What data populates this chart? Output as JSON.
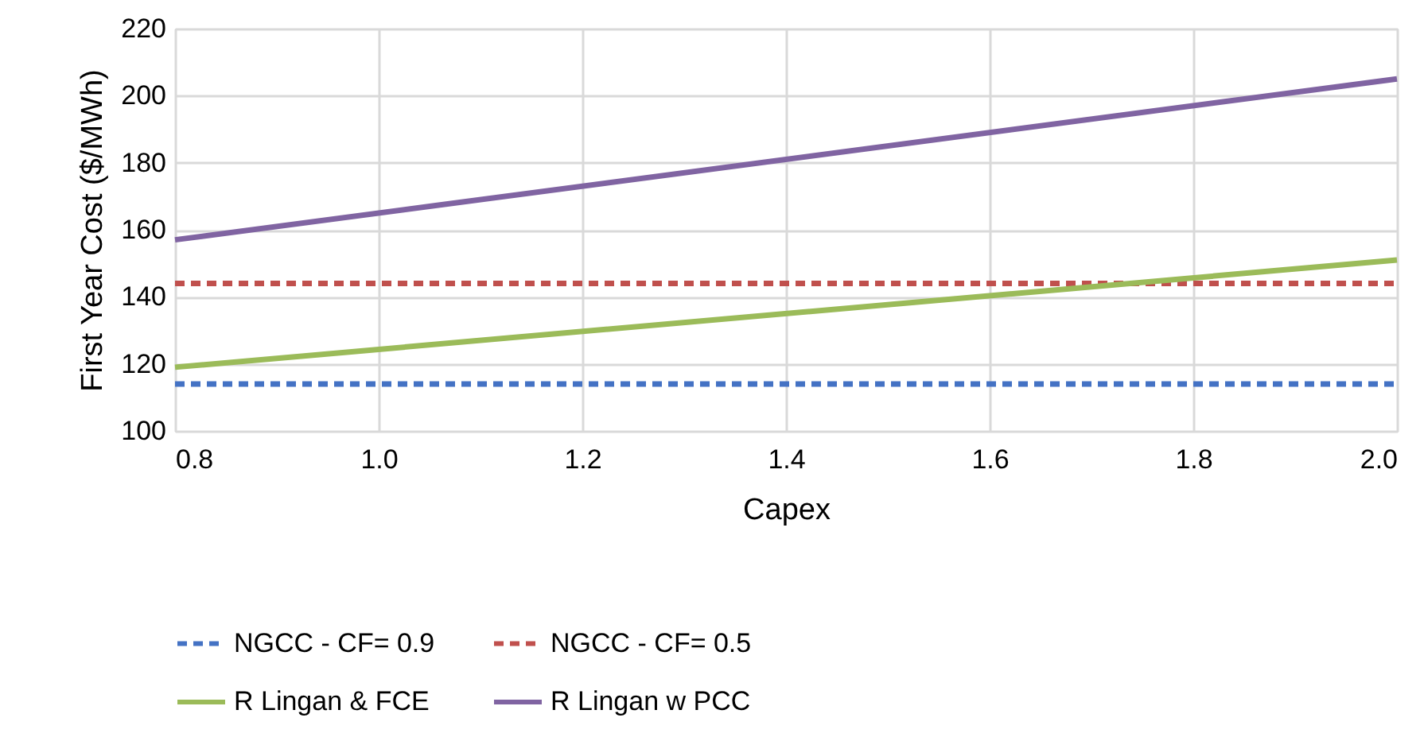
{
  "chart_data": {
    "type": "line",
    "xlabel": "Capex",
    "ylabel": "First Year Cost ($/MWh)",
    "x": [
      0.8,
      2.0
    ],
    "series": [
      {
        "name": "NGCC - CF= 0.9",
        "color": "#4472c4",
        "line_style": "dashed",
        "values": [
          114,
          114
        ]
      },
      {
        "name": "NGCC - CF= 0.5",
        "color": "#c0504d",
        "line_style": "dashed",
        "values": [
          144,
          144
        ]
      },
      {
        "name": "R Lingan & FCE",
        "color": "#9bbb59",
        "line_style": "solid",
        "values": [
          119,
          151
        ]
      },
      {
        "name": "R Lingan w PCC",
        "color": "#8064a2",
        "line_style": "solid",
        "values": [
          157,
          205
        ]
      }
    ],
    "xlim": [
      0.8,
      2.0
    ],
    "xticks": [
      {
        "value": 0.8,
        "label": "0.8"
      },
      {
        "value": 1.0,
        "label": "1.0"
      },
      {
        "value": 1.2,
        "label": "1.2"
      },
      {
        "value": 1.4,
        "label": "1.4"
      },
      {
        "value": 1.6,
        "label": "1.6"
      },
      {
        "value": 1.8,
        "label": "1.8"
      },
      {
        "value": 2.0,
        "label": "2.0"
      }
    ],
    "ylim": [
      100,
      220
    ],
    "yticks": [
      100,
      120,
      140,
      160,
      180,
      200,
      220
    ],
    "grid": true,
    "legend": "bottom"
  }
}
